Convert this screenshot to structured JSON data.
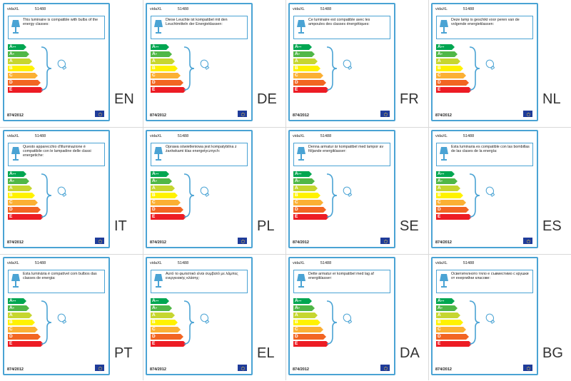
{
  "brand": "vidaXL",
  "product_code": "51488",
  "regulation": "874/2012",
  "class_labels": [
    "A++",
    "A+",
    "A",
    "B",
    "C",
    "D",
    "E"
  ],
  "class_colors": [
    "#00a651",
    "#50b747",
    "#c6d630",
    "#fff200",
    "#fbb034",
    "#f26522",
    "#ed1c24"
  ],
  "cards": [
    {
      "lang": "EN",
      "text": "This luminaire is compatible with bulbs of the energy classes:"
    },
    {
      "lang": "DE",
      "text": "Diese Leuchte ist kompatibel mit den Leuchtmitteln der Energieklassen:"
    },
    {
      "lang": "FR",
      "text": "Ce luminaire est compatible avec les ampoules des classes énergétiques:"
    },
    {
      "lang": "NL",
      "text": "Deze lamp is geschikt voor peren van de volgende energieklassen:"
    },
    {
      "lang": "IT",
      "text": "Questo apparecchio d'illuminazione è compatibile con le lampadine delle classi energetiche:"
    },
    {
      "lang": "PL",
      "text": "Oprawa oświetleniowa jest kompatybilna z żarówkami klas energetycznych:"
    },
    {
      "lang": "SE",
      "text": "Denna armatur är kompatibel med lampor av följande energiklasser:"
    },
    {
      "lang": "ES",
      "text": "Esta luminaria es compatible con las bombillas de las clases de la energía:"
    },
    {
      "lang": "PT",
      "text": "Esta luminária é compatível com bulbos das classes de energia:"
    },
    {
      "lang": "EL",
      "text": "Αυτό το φωτιστικό είναι συμβατό με λάμπες ενεργειακής κλάσης:"
    },
    {
      "lang": "DA",
      "text": "Dette armatur er kompatibel med lag af energiklasser:"
    },
    {
      "lang": "BG",
      "text": "Осветителното тяло е съвместимо с крушки от енергийни класове:"
    }
  ]
}
